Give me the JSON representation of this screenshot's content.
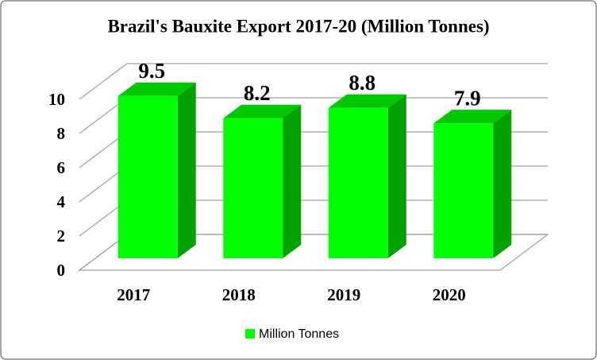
{
  "chart_data": {
    "type": "bar3d",
    "title": "Brazil's Bauxite Export 2017-20 (Million Tonnes)",
    "categories": [
      "2017",
      "2018",
      "2019",
      "2020"
    ],
    "series": [
      {
        "name": "Million Tonnes",
        "color": "#00ff00",
        "values": [
          9.5,
          8.2,
          8.8,
          7.9
        ]
      }
    ],
    "ylim": [
      0,
      10
    ],
    "yticks": [
      0,
      2,
      4,
      6,
      8,
      10
    ],
    "grid": true,
    "legend": "bottom"
  }
}
